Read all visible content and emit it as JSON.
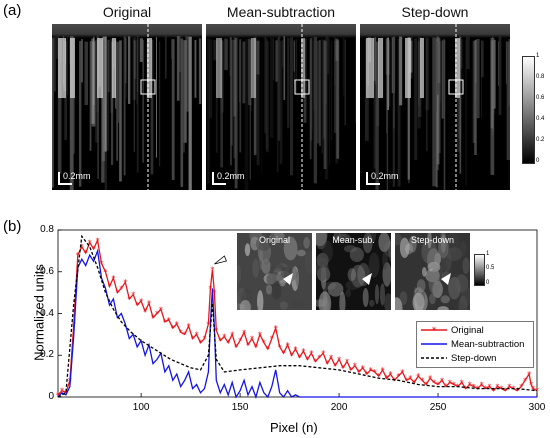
{
  "panel_a": {
    "label": "(a)",
    "images": [
      {
        "title": "Original",
        "scale": "0.2mm"
      },
      {
        "title": "Mean-subtraction",
        "scale": "0.2mm"
      },
      {
        "title": "Step-down",
        "scale": "0.2mm"
      }
    ],
    "colorbar": {
      "ticks": [
        "1",
        "0.8",
        "0.6",
        "0.4",
        "0.2",
        "0"
      ]
    }
  },
  "panel_b": {
    "label": "(b)",
    "insets": [
      {
        "title": "Original"
      },
      {
        "title": "Mean-sub."
      },
      {
        "title": "Step-down"
      }
    ],
    "inset_colorbar": {
      "ticks": [
        "1",
        "0.5",
        "0"
      ]
    }
  },
  "chart_data": {
    "type": "line",
    "title": "",
    "xlabel": "Pixel (n)",
    "ylabel": "Normalized units",
    "xlim": [
      58,
      300
    ],
    "ylim": [
      0,
      0.8
    ],
    "xticks": [
      100,
      150,
      200,
      250,
      300
    ],
    "yticks": [
      0,
      0.2,
      0.4,
      0.6,
      0.8
    ],
    "legend_position": "bottom-right",
    "series": [
      {
        "name": "Original",
        "color": "#e8161b",
        "style": "solid-star",
        "x": [
          58,
          60,
          62,
          64,
          66,
          68,
          70,
          72,
          74,
          76,
          78,
          80,
          82,
          84,
          86,
          88,
          90,
          92,
          94,
          96,
          98,
          100,
          102,
          104,
          106,
          108,
          110,
          112,
          114,
          116,
          118,
          120,
          122,
          124,
          126,
          128,
          130,
          132,
          134,
          135,
          136,
          137,
          138,
          140,
          142,
          144,
          146,
          148,
          150,
          152,
          154,
          156,
          158,
          160,
          162,
          164,
          166,
          168,
          170,
          172,
          174,
          176,
          178,
          180,
          182,
          184,
          186,
          188,
          190,
          192,
          194,
          196,
          198,
          200,
          202,
          204,
          206,
          208,
          210,
          212,
          214,
          216,
          218,
          220,
          222,
          224,
          226,
          228,
          230,
          232,
          234,
          236,
          238,
          240,
          242,
          244,
          246,
          248,
          250,
          252,
          254,
          256,
          258,
          260,
          262,
          264,
          266,
          268,
          270,
          272,
          274,
          276,
          278,
          280,
          282,
          284,
          286,
          288,
          290,
          292,
          294,
          296,
          297,
          298,
          300
        ],
        "y": [
          0.01,
          0.03,
          0.02,
          0.08,
          0.35,
          0.68,
          0.72,
          0.69,
          0.74,
          0.71,
          0.75,
          0.64,
          0.6,
          0.53,
          0.57,
          0.5,
          0.52,
          0.55,
          0.47,
          0.49,
          0.44,
          0.46,
          0.41,
          0.45,
          0.38,
          0.4,
          0.42,
          0.36,
          0.37,
          0.33,
          0.35,
          0.31,
          0.3,
          0.34,
          0.28,
          0.3,
          0.26,
          0.28,
          0.35,
          0.52,
          0.61,
          0.5,
          0.32,
          0.27,
          0.29,
          0.26,
          0.3,
          0.24,
          0.27,
          0.31,
          0.25,
          0.28,
          0.24,
          0.3,
          0.26,
          0.23,
          0.28,
          0.33,
          0.24,
          0.21,
          0.25,
          0.2,
          0.23,
          0.19,
          0.22,
          0.18,
          0.21,
          0.17,
          0.19,
          0.21,
          0.16,
          0.19,
          0.15,
          0.18,
          0.14,
          0.17,
          0.13,
          0.15,
          0.12,
          0.14,
          0.11,
          0.13,
          0.12,
          0.1,
          0.13,
          0.09,
          0.11,
          0.08,
          0.1,
          0.12,
          0.08,
          0.09,
          0.07,
          0.1,
          0.08,
          0.06,
          0.09,
          0.07,
          0.06,
          0.08,
          0.05,
          0.07,
          0.06,
          0.05,
          0.07,
          0.04,
          0.06,
          0.05,
          0.04,
          0.06,
          0.04,
          0.05,
          0.03,
          0.05,
          0.04,
          0.03,
          0.05,
          0.04,
          0.03,
          0.05,
          0.08,
          0.11,
          0.06,
          0.04,
          0.03
        ]
      },
      {
        "name": "Mean-subtraction",
        "color": "#1414e6",
        "style": "solid",
        "x": [
          58,
          60,
          62,
          64,
          66,
          68,
          70,
          72,
          74,
          76,
          78,
          80,
          82,
          84,
          86,
          88,
          90,
          92,
          94,
          96,
          98,
          100,
          102,
          104,
          106,
          108,
          110,
          112,
          114,
          116,
          118,
          120,
          122,
          124,
          126,
          128,
          130,
          132,
          134,
          135,
          136,
          137,
          138,
          140,
          142,
          144,
          146,
          148,
          150,
          152,
          154,
          156,
          158,
          160,
          162,
          164,
          166,
          168,
          170,
          172,
          174,
          176,
          178,
          180,
          185,
          190,
          200,
          220,
          250,
          300
        ],
        "y": [
          0.0,
          0.02,
          0.01,
          0.05,
          0.3,
          0.62,
          0.66,
          0.63,
          0.68,
          0.65,
          0.7,
          0.57,
          0.52,
          0.44,
          0.47,
          0.38,
          0.4,
          0.35,
          0.28,
          0.3,
          0.24,
          0.27,
          0.2,
          0.25,
          0.16,
          0.18,
          0.21,
          0.12,
          0.15,
          0.08,
          0.11,
          0.05,
          0.08,
          0.12,
          0.04,
          0.06,
          0.02,
          0.04,
          0.12,
          0.35,
          0.52,
          0.33,
          0.08,
          0.02,
          0.06,
          0.01,
          0.07,
          0.0,
          0.03,
          0.08,
          0.01,
          0.05,
          0.0,
          0.07,
          0.02,
          0.0,
          0.05,
          0.13,
          0.02,
          0.0,
          0.03,
          0.0,
          0.01,
          0.0,
          0.0,
          0.0,
          0.0,
          0.0,
          0.0,
          0.0
        ]
      },
      {
        "name": "Step-down",
        "color": "#000000",
        "style": "dashed",
        "x": [
          58,
          62,
          66,
          70,
          74,
          78,
          82,
          86,
          90,
          95,
          100,
          105,
          110,
          115,
          120,
          125,
          130,
          134,
          136,
          138,
          142,
          150,
          160,
          170,
          180,
          190,
          200,
          210,
          220,
          230,
          240,
          250,
          260,
          270,
          280,
          290,
          300
        ],
        "y": [
          0.0,
          0.02,
          0.45,
          0.77,
          0.72,
          0.62,
          0.5,
          0.42,
          0.36,
          0.31,
          0.27,
          0.24,
          0.21,
          0.18,
          0.16,
          0.14,
          0.13,
          0.2,
          0.45,
          0.18,
          0.12,
          0.13,
          0.14,
          0.15,
          0.15,
          0.14,
          0.13,
          0.11,
          0.09,
          0.08,
          0.06,
          0.05,
          0.05,
          0.04,
          0.04,
          0.04,
          0.03
        ]
      }
    ]
  }
}
